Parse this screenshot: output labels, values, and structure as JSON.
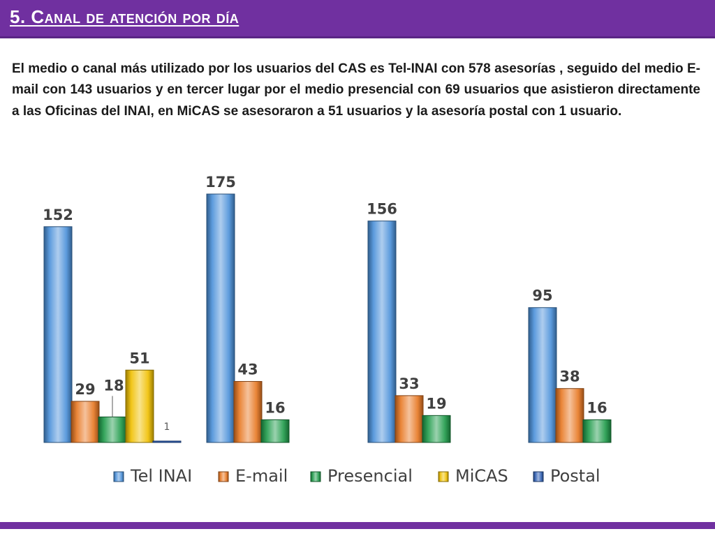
{
  "header": {
    "title": "5. Canal de atención por día"
  },
  "description": "El medio o canal más utilizado por los usuarios del CAS es Tel-INAI con 578 asesorías , seguido del medio E-mail con 143 usuarios y en tercer lugar por el medio presencial con 69 usuarios que  asistieron directamente a las Oficinas del INAI, en MiCAS se asesoraron a 51 usuarios y la asesoría postal con 1 usuario.",
  "colors": {
    "header_bar": "#7030a0",
    "tel_inai": "#4a90d9",
    "email": "#e87722",
    "presencial": "#1f9b4a",
    "micas": "#f0c000",
    "postal": "#2f5fb3"
  },
  "chart_data": {
    "type": "bar",
    "categories": [
      "",
      "",
      "",
      ""
    ],
    "series": [
      {
        "name": "Tel INAI",
        "values": [
          152,
          175,
          156,
          95
        ]
      },
      {
        "name": "E-mail",
        "values": [
          29,
          43,
          33,
          38
        ]
      },
      {
        "name": "Presencial",
        "values": [
          18,
          16,
          19,
          16
        ]
      },
      {
        "name": "MiCAS",
        "values": [
          51,
          null,
          null,
          null
        ]
      },
      {
        "name": "Postal",
        "values": [
          1,
          null,
          null,
          null
        ]
      }
    ],
    "ylim": [
      0,
      175
    ],
    "grid": false,
    "legend_position": "bottom",
    "data_labels": true
  }
}
